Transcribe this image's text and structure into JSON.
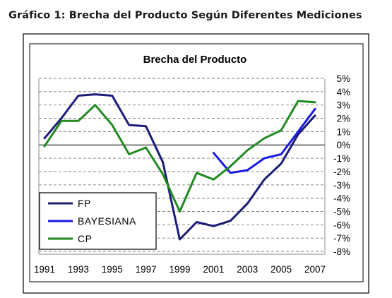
{
  "figure": {
    "title": "Gráfico 1: Brecha del Producto Según Diferentes Mediciones"
  },
  "chart_data": {
    "type": "line",
    "title": "Brecha del Producto",
    "x_ticks": [
      "1991",
      "1993",
      "1995",
      "1997",
      "1999",
      "2001",
      "2003",
      "2005",
      "2007"
    ],
    "y_ticks": [
      "5%",
      "4%",
      "3%",
      "2%",
      "1%",
      "0%",
      "-1%",
      "-2%",
      "-3%",
      "-4%",
      "-5%",
      "-6%",
      "-7%",
      "-8%"
    ],
    "xlim": [
      1991,
      2007
    ],
    "ylim": [
      -8,
      5
    ],
    "y_axis_side": "right",
    "grid": "horizontal dashed",
    "legend_placement": "bottom-left",
    "series": [
      {
        "name": "FP",
        "color": "#1c1c78",
        "x": [
          1991,
          1992,
          1993,
          1994,
          1995,
          1996,
          1997,
          1998,
          1999,
          2000,
          2001,
          2002,
          2003,
          2004,
          2005,
          2006,
          2007
        ],
        "y": [
          0.5,
          2.0,
          3.7,
          3.8,
          3.7,
          1.5,
          1.4,
          -1.3,
          -7.1,
          -5.8,
          -6.1,
          -5.7,
          -4.4,
          -2.6,
          -1.4,
          0.8,
          2.2
        ]
      },
      {
        "name": "BAYESIANA",
        "color": "#1a1ae6",
        "x": [
          2001,
          2002,
          2003,
          2004,
          2005,
          2006,
          2007
        ],
        "y": [
          -0.6,
          -2.1,
          -1.9,
          -1.0,
          -0.7,
          1.0,
          2.7
        ]
      },
      {
        "name": "CP",
        "color": "#218a21",
        "x": [
          1991,
          1992,
          1993,
          1994,
          1995,
          1996,
          1997,
          1998,
          1999,
          2000,
          2001,
          2002,
          2003,
          2004,
          2005,
          2006,
          2007
        ],
        "y": [
          -0.1,
          1.8,
          1.8,
          3.0,
          1.5,
          -0.7,
          -0.2,
          -2.2,
          -5.0,
          -2.1,
          -2.6,
          -1.6,
          -0.4,
          0.5,
          1.1,
          3.3,
          3.2
        ]
      }
    ]
  }
}
